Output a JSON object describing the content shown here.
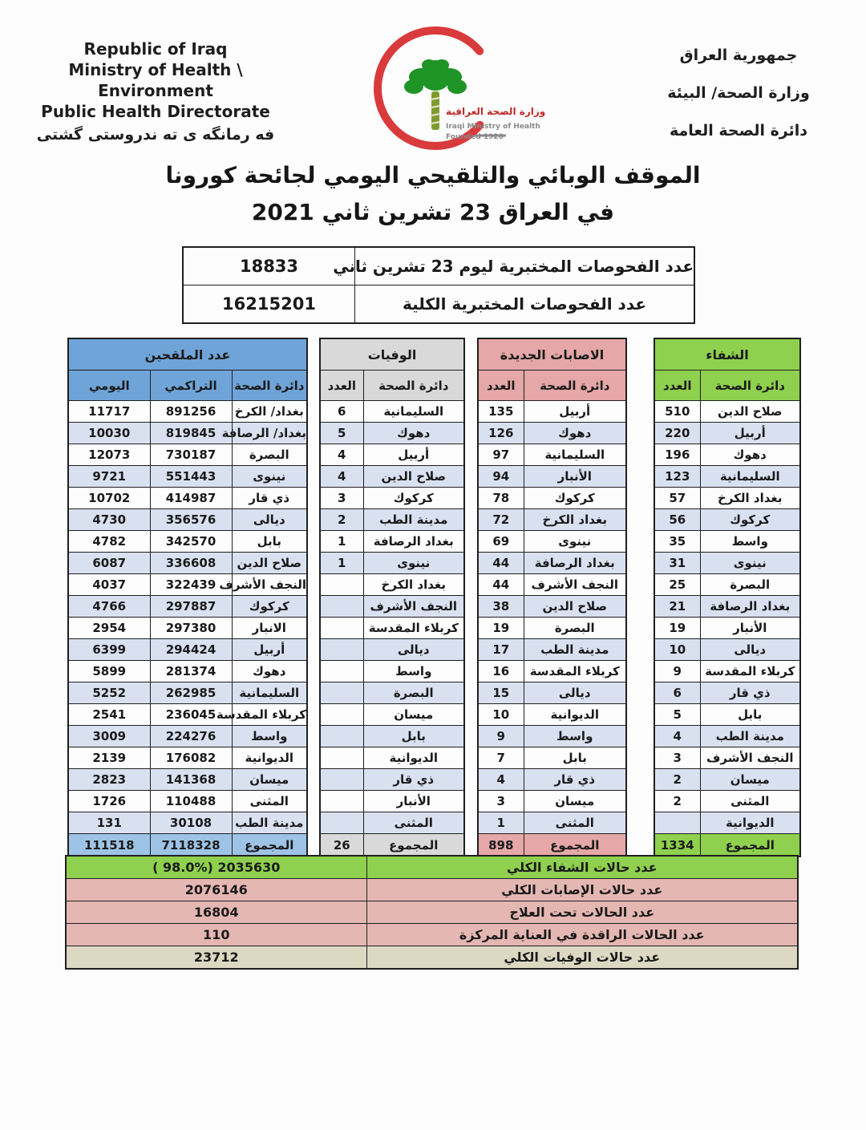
{
  "header": {
    "left": {
      "line1": "Republic of Iraq",
      "line2": "Ministry of Health \\ Environment",
      "line3": "Public Health Directorate",
      "line4": "فه رمانگه ی ته ندروستی گشتی"
    },
    "right": {
      "line1": "جمهورية العراق",
      "line2": "وزارة الصحة/ البيئة",
      "line3": "دائرة الصحة العامة"
    },
    "logo": {
      "arabic": "وزارة الصحة العراقية",
      "english": "Iraqi Ministry of Health",
      "founded": "Founded 1920"
    }
  },
  "title": {
    "line1": "الموقف الوبائي والتلقيحي اليومي لجائحة كورونا",
    "line2": "في العراق  23  تشرين ثاني 2021"
  },
  "tests": {
    "rows": [
      {
        "label": "عدد الفحوصات المختبرية  ليوم 23 تشرين ثاني",
        "value": "18833"
      },
      {
        "label": "عدد الفحوصات المختبرية الكلية",
        "value": "16215201"
      }
    ]
  },
  "tables": {
    "vaccinated": {
      "title": "عدد الملقحين",
      "columns": [
        "اليومي",
        "التراكمي",
        "دائرة الصحة"
      ],
      "rows": [
        [
          "11717",
          "891256",
          "بغداد/ الكرخ"
        ],
        [
          "10030",
          "819845",
          "بغداد/ الرصافة"
        ],
        [
          "12073",
          "730187",
          "البصرة"
        ],
        [
          "9721",
          "551443",
          "نينوى"
        ],
        [
          "10702",
          "414987",
          "ذي قار"
        ],
        [
          "4730",
          "356576",
          "ديالى"
        ],
        [
          "4782",
          "342570",
          "بابل"
        ],
        [
          "6087",
          "336608",
          "صلاح الدين"
        ],
        [
          "4037",
          "322439",
          "النجف الأشرف"
        ],
        [
          "4766",
          "297887",
          "كركوك"
        ],
        [
          "2954",
          "297380",
          "الانبار"
        ],
        [
          "6399",
          "294424",
          "أربيل"
        ],
        [
          "5899",
          "281374",
          "دهوك"
        ],
        [
          "5252",
          "262985",
          "السليمانية"
        ],
        [
          "2541",
          "236045",
          "كربلاء المقدسة"
        ],
        [
          "3009",
          "224276",
          "واسط"
        ],
        [
          "2139",
          "176082",
          "الديوانية"
        ],
        [
          "2823",
          "141368",
          "ميسان"
        ],
        [
          "1726",
          "110488",
          "المثنى"
        ],
        [
          "131",
          "30108",
          "مدينة الطب"
        ]
      ],
      "total": [
        "111518",
        "7118328",
        "المجموع"
      ]
    },
    "deaths": {
      "title": "الوفيات",
      "columns": [
        "العدد",
        "دائرة الصحة"
      ],
      "rows": [
        [
          "6",
          "السليمانية"
        ],
        [
          "5",
          "دهوك"
        ],
        [
          "4",
          "أربيل"
        ],
        [
          "4",
          "صلاح الدين"
        ],
        [
          "3",
          "كركوك"
        ],
        [
          "2",
          "مدينة الطب"
        ],
        [
          "1",
          "بغداد الرصافة"
        ],
        [
          "1",
          "نينوى"
        ],
        [
          "",
          "بغداد الكرخ"
        ],
        [
          "",
          "النجف الأشرف"
        ],
        [
          "",
          "كربلاء المقدسة"
        ],
        [
          "",
          "ديالى"
        ],
        [
          "",
          "واسط"
        ],
        [
          "",
          "البصرة"
        ],
        [
          "",
          "ميسان"
        ],
        [
          "",
          "بابل"
        ],
        [
          "",
          "الديوانية"
        ],
        [
          "",
          "ذي قار"
        ],
        [
          "",
          "الأنبار"
        ],
        [
          "",
          "المثنى"
        ]
      ],
      "total": [
        "26",
        "المجموع"
      ]
    },
    "new_cases": {
      "title": "الاصابات الجديدة",
      "columns": [
        "العدد",
        "دائرة الصحة"
      ],
      "rows": [
        [
          "135",
          "أربيل"
        ],
        [
          "126",
          "دهوك"
        ],
        [
          "97",
          "السليمانية"
        ],
        [
          "94",
          "الأنبار"
        ],
        [
          "78",
          "كركوك"
        ],
        [
          "72",
          "بغداد الكرخ"
        ],
        [
          "69",
          "نينوى"
        ],
        [
          "44",
          "بغداد الرصافة"
        ],
        [
          "44",
          "النجف الأشرف"
        ],
        [
          "38",
          "صلاح الدين"
        ],
        [
          "19",
          "البصرة"
        ],
        [
          "17",
          "مدينة الطب"
        ],
        [
          "16",
          "كربلاء المقدسة"
        ],
        [
          "15",
          "ديالى"
        ],
        [
          "10",
          "الديوانية"
        ],
        [
          "9",
          "واسط"
        ],
        [
          "7",
          "بابل"
        ],
        [
          "4",
          "ذي قار"
        ],
        [
          "3",
          "ميسان"
        ],
        [
          "1",
          "المثنى"
        ]
      ],
      "total": [
        "898",
        "المجموع"
      ]
    },
    "recovery": {
      "title": "الشفاء",
      "columns": [
        "العدد",
        "دائرة الصحة"
      ],
      "rows": [
        [
          "510",
          "صلاح الدين"
        ],
        [
          "220",
          "أربيل"
        ],
        [
          "196",
          "دهوك"
        ],
        [
          "123",
          "السليمانية"
        ],
        [
          "57",
          "بغداد الكرخ"
        ],
        [
          "56",
          "كركوك"
        ],
        [
          "35",
          "واسط"
        ],
        [
          "31",
          "نينوى"
        ],
        [
          "25",
          "البصرة"
        ],
        [
          "21",
          "بغداد الرصافة"
        ],
        [
          "19",
          "الأنبار"
        ],
        [
          "10",
          "ديالى"
        ],
        [
          "9",
          "كربلاء المقدسة"
        ],
        [
          "6",
          "ذي قار"
        ],
        [
          "5",
          "بابل"
        ],
        [
          "4",
          "مدينة الطب"
        ],
        [
          "3",
          "النجف الأشرف"
        ],
        [
          "2",
          "ميسان"
        ],
        [
          "2",
          "المثنى"
        ],
        [
          "",
          "الديوانية"
        ]
      ],
      "total": [
        "1334",
        "المجموع"
      ]
    }
  },
  "summary": {
    "rows": [
      {
        "value": "( 98.0%)  2035630",
        "label": "عدد حالات الشفاء الكلي",
        "color": "green"
      },
      {
        "value": "2076146",
        "label": "عدد حالات الإصابات الكلي",
        "color": "pink"
      },
      {
        "value": "16804",
        "label": "عدد الحالات تحت العلاج",
        "color": "pink"
      },
      {
        "value": "110",
        "label": "عدد الحالات الراقدة في العناية المركزة",
        "color": "pink"
      },
      {
        "value": "23712",
        "label": "عدد حالات الوفيات الكلي",
        "color": "tan"
      }
    ]
  },
  "colors": {
    "vaccinated_header": "#6fa4d8",
    "vaccinated_total": "#9dc3e6",
    "row_stripe": "#d9e1f1",
    "deaths_header": "#d9d9d9",
    "new_cases_header": "#e5a7a7",
    "recovery_header": "#8fd04e",
    "summary_pink": "#e5b7b3",
    "summary_tan": "#dcd8c2",
    "crescent_red": "#d93a3c",
    "tree_green": "#1f9427"
  }
}
